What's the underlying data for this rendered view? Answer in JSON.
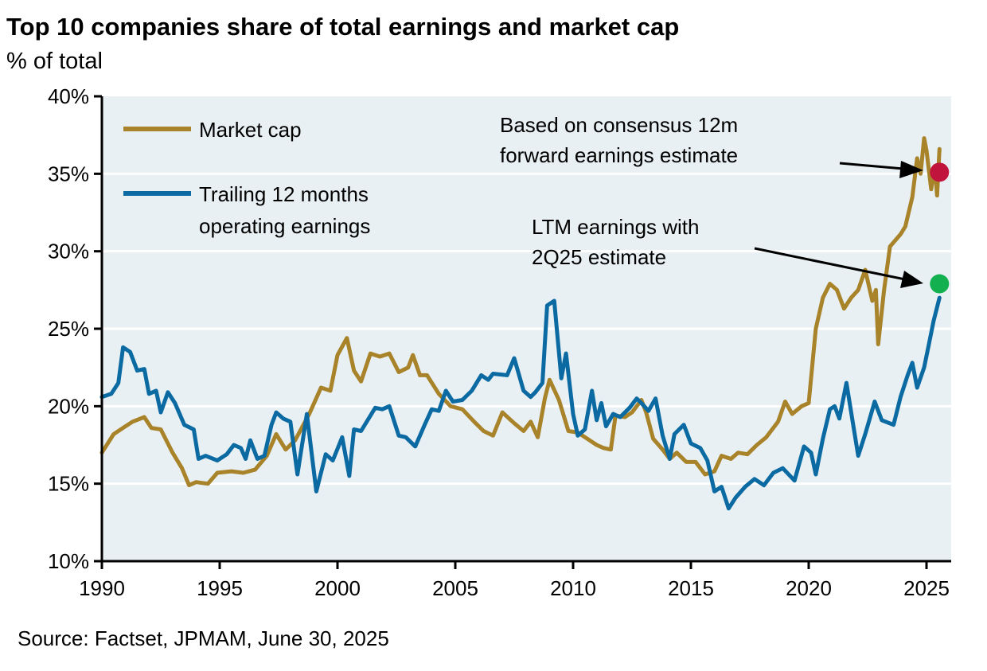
{
  "chart_data": {
    "type": "line",
    "title": "Top 10 companies share of total earnings and market cap",
    "subtitle": "% of total",
    "source": "Source: Factset, JPMAM, June 30, 2025",
    "xlim": [
      1990,
      2026
    ],
    "ylim": [
      10,
      40
    ],
    "grid": true,
    "legend_placement": "top-left",
    "x_ticks": [
      1990,
      1995,
      2000,
      2005,
      2010,
      2015,
      2020,
      2025
    ],
    "x_tick_labels": [
      "1990",
      "1995",
      "2000",
      "2005",
      "2010",
      "2015",
      "2020",
      "2025"
    ],
    "y_ticks": [
      10,
      15,
      20,
      25,
      30,
      35,
      40
    ],
    "y_tick_labels": [
      "10%",
      "15%",
      "20%",
      "25%",
      "30%",
      "35%",
      "40%"
    ],
    "series": [
      {
        "name": "Market cap",
        "legend_lines": [
          "Market cap"
        ],
        "color": "#a8832a",
        "points": [
          [
            1990.0,
            17.0
          ],
          [
            1990.5,
            18.2
          ],
          [
            1990.9,
            18.6
          ],
          [
            1991.3,
            19.0
          ],
          [
            1991.8,
            19.3
          ],
          [
            1992.1,
            18.6
          ],
          [
            1992.5,
            18.5
          ],
          [
            1993.0,
            17.0
          ],
          [
            1993.4,
            16.0
          ],
          [
            1993.7,
            14.9
          ],
          [
            1994.0,
            15.1
          ],
          [
            1994.5,
            15.0
          ],
          [
            1994.9,
            15.7
          ],
          [
            1995.5,
            15.8
          ],
          [
            1996.0,
            15.7
          ],
          [
            1996.5,
            15.9
          ],
          [
            1997.0,
            16.8
          ],
          [
            1997.4,
            18.2
          ],
          [
            1997.8,
            17.2
          ],
          [
            1998.2,
            17.8
          ],
          [
            1998.8,
            19.5
          ],
          [
            1999.3,
            21.2
          ],
          [
            1999.7,
            21.0
          ],
          [
            2000.0,
            23.3
          ],
          [
            2000.4,
            24.4
          ],
          [
            2000.7,
            22.3
          ],
          [
            2001.0,
            21.6
          ],
          [
            2001.4,
            23.4
          ],
          [
            2001.8,
            23.2
          ],
          [
            2002.2,
            23.4
          ],
          [
            2002.6,
            22.2
          ],
          [
            2003.0,
            22.5
          ],
          [
            2003.2,
            23.3
          ],
          [
            2003.5,
            22.0
          ],
          [
            2003.8,
            22.0
          ],
          [
            2004.3,
            20.8
          ],
          [
            2004.8,
            20.0
          ],
          [
            2005.3,
            19.8
          ],
          [
            2005.8,
            19.0
          ],
          [
            2006.2,
            18.4
          ],
          [
            2006.6,
            18.1
          ],
          [
            2007.0,
            19.6
          ],
          [
            2007.5,
            18.9
          ],
          [
            2007.9,
            18.4
          ],
          [
            2008.2,
            19.0
          ],
          [
            2008.5,
            18.0
          ],
          [
            2008.8,
            20.5
          ],
          [
            2009.0,
            21.7
          ],
          [
            2009.4,
            20.4
          ],
          [
            2009.8,
            18.4
          ],
          [
            2010.2,
            18.3
          ],
          [
            2010.6,
            17.9
          ],
          [
            2011.0,
            17.5
          ],
          [
            2011.3,
            17.3
          ],
          [
            2011.6,
            17.2
          ],
          [
            2011.8,
            19.4
          ],
          [
            2012.2,
            19.3
          ],
          [
            2012.5,
            19.6
          ],
          [
            2012.9,
            20.4
          ],
          [
            2013.1,
            19.6
          ],
          [
            2013.4,
            17.9
          ],
          [
            2013.8,
            17.2
          ],
          [
            2014.1,
            16.6
          ],
          [
            2014.4,
            17.0
          ],
          [
            2014.8,
            16.4
          ],
          [
            2015.2,
            16.4
          ],
          [
            2015.6,
            15.6
          ],
          [
            2016.0,
            15.8
          ],
          [
            2016.3,
            16.8
          ],
          [
            2016.7,
            16.6
          ],
          [
            2017.0,
            17.0
          ],
          [
            2017.4,
            16.9
          ],
          [
            2017.8,
            17.5
          ],
          [
            2018.2,
            18.0
          ],
          [
            2018.7,
            19.0
          ],
          [
            2019.0,
            20.3
          ],
          [
            2019.3,
            19.5
          ],
          [
            2019.7,
            20.0
          ],
          [
            2020.0,
            20.2
          ],
          [
            2020.3,
            25.0
          ],
          [
            2020.6,
            27.0
          ],
          [
            2020.9,
            27.9
          ],
          [
            2021.2,
            27.5
          ],
          [
            2021.5,
            26.3
          ],
          [
            2021.8,
            27.0
          ],
          [
            2022.1,
            27.5
          ],
          [
            2022.4,
            28.8
          ],
          [
            2022.7,
            26.8
          ],
          [
            2022.85,
            27.5
          ],
          [
            2022.95,
            24.0
          ],
          [
            2023.2,
            27.5
          ],
          [
            2023.45,
            30.3
          ],
          [
            2023.9,
            31.1
          ],
          [
            2024.1,
            31.6
          ],
          [
            2024.4,
            33.5
          ],
          [
            2024.6,
            36.0
          ],
          [
            2024.75,
            35.0
          ],
          [
            2024.9,
            37.3
          ],
          [
            2025.0,
            36.5
          ],
          [
            2025.2,
            34.0
          ],
          [
            2025.35,
            35.5
          ],
          [
            2025.45,
            33.6
          ],
          [
            2025.55,
            36.6
          ]
        ]
      },
      {
        "name": "Trailing 12 months operating earnings",
        "legend_lines": [
          "Trailing 12 months",
          "operating earnings"
        ],
        "color": "#0b6aa2",
        "points": [
          [
            1990.0,
            20.6
          ],
          [
            1990.4,
            20.8
          ],
          [
            1990.7,
            21.5
          ],
          [
            1990.9,
            23.8
          ],
          [
            1991.2,
            23.5
          ],
          [
            1991.5,
            22.3
          ],
          [
            1991.8,
            22.4
          ],
          [
            1992.0,
            20.8
          ],
          [
            1992.3,
            21.0
          ],
          [
            1992.5,
            19.6
          ],
          [
            1992.8,
            20.9
          ],
          [
            1993.1,
            20.2
          ],
          [
            1993.5,
            18.8
          ],
          [
            1993.9,
            18.5
          ],
          [
            1994.1,
            16.6
          ],
          [
            1994.4,
            16.8
          ],
          [
            1994.9,
            16.5
          ],
          [
            1995.3,
            16.9
          ],
          [
            1995.6,
            17.5
          ],
          [
            1995.9,
            17.3
          ],
          [
            1996.1,
            16.6
          ],
          [
            1996.3,
            17.8
          ],
          [
            1996.6,
            16.6
          ],
          [
            1996.9,
            16.8
          ],
          [
            1997.2,
            18.8
          ],
          [
            1997.4,
            19.6
          ],
          [
            1997.7,
            19.2
          ],
          [
            1998.0,
            19.0
          ],
          [
            1998.3,
            15.6
          ],
          [
            1998.7,
            19.5
          ],
          [
            1999.1,
            14.5
          ],
          [
            1999.5,
            16.9
          ],
          [
            1999.8,
            16.5
          ],
          [
            2000.2,
            18.0
          ],
          [
            2000.5,
            15.5
          ],
          [
            2000.7,
            18.5
          ],
          [
            2001.0,
            18.4
          ],
          [
            2001.6,
            19.9
          ],
          [
            2001.9,
            19.8
          ],
          [
            2002.2,
            20.0
          ],
          [
            2002.6,
            18.1
          ],
          [
            2002.9,
            18.0
          ],
          [
            2003.3,
            17.4
          ],
          [
            2003.7,
            18.8
          ],
          [
            2004.0,
            19.8
          ],
          [
            2004.3,
            19.7
          ],
          [
            2004.6,
            21.0
          ],
          [
            2004.9,
            20.3
          ],
          [
            2005.3,
            20.4
          ],
          [
            2005.7,
            21.0
          ],
          [
            2006.1,
            22.0
          ],
          [
            2006.4,
            21.7
          ],
          [
            2006.6,
            22.1
          ],
          [
            2007.2,
            22.0
          ],
          [
            2007.5,
            23.1
          ],
          [
            2007.9,
            21.0
          ],
          [
            2008.2,
            20.6
          ],
          [
            2008.4,
            20.9
          ],
          [
            2008.7,
            21.5
          ],
          [
            2008.9,
            26.5
          ],
          [
            2009.2,
            26.8
          ],
          [
            2009.5,
            21.8
          ],
          [
            2009.7,
            23.4
          ],
          [
            2010.0,
            19.5
          ],
          [
            2010.2,
            18.1
          ],
          [
            2010.5,
            18.5
          ],
          [
            2010.8,
            21.0
          ],
          [
            2011.0,
            19.1
          ],
          [
            2011.2,
            20.2
          ],
          [
            2011.4,
            18.7
          ],
          [
            2011.7,
            19.5
          ],
          [
            2012.0,
            19.3
          ],
          [
            2012.4,
            19.9
          ],
          [
            2012.7,
            20.5
          ],
          [
            2012.9,
            20.2
          ],
          [
            2013.2,
            19.7
          ],
          [
            2013.5,
            20.5
          ],
          [
            2013.8,
            18.1
          ],
          [
            2014.1,
            16.6
          ],
          [
            2014.3,
            18.2
          ],
          [
            2014.7,
            18.8
          ],
          [
            2015.0,
            17.6
          ],
          [
            2015.4,
            17.3
          ],
          [
            2015.7,
            16.5
          ],
          [
            2016.0,
            14.5
          ],
          [
            2016.3,
            14.8
          ],
          [
            2016.6,
            13.4
          ],
          [
            2016.9,
            14.1
          ],
          [
            2017.3,
            14.8
          ],
          [
            2017.7,
            15.3
          ],
          [
            2018.1,
            14.9
          ],
          [
            2018.5,
            15.7
          ],
          [
            2018.9,
            16.0
          ],
          [
            2019.4,
            15.2
          ],
          [
            2019.8,
            17.4
          ],
          [
            2020.1,
            17.0
          ],
          [
            2020.3,
            15.6
          ],
          [
            2020.6,
            17.9
          ],
          [
            2020.9,
            19.8
          ],
          [
            2021.1,
            20.0
          ],
          [
            2021.3,
            19.2
          ],
          [
            2021.6,
            21.5
          ],
          [
            2021.9,
            18.7
          ],
          [
            2022.1,
            16.8
          ],
          [
            2022.4,
            18.2
          ],
          [
            2022.8,
            20.3
          ],
          [
            2023.1,
            19.1
          ],
          [
            2023.6,
            18.8
          ],
          [
            2023.9,
            20.6
          ],
          [
            2024.2,
            22.0
          ],
          [
            2024.4,
            22.8
          ],
          [
            2024.6,
            21.2
          ],
          [
            2024.9,
            22.5
          ],
          [
            2025.1,
            24.0
          ],
          [
            2025.3,
            25.5
          ],
          [
            2025.55,
            27.0
          ]
        ]
      }
    ],
    "markers": [
      {
        "name": "forward-earnings-estimate",
        "x": 2025.55,
        "y": 35.1,
        "color": "#c0143c"
      },
      {
        "name": "ltm-earnings-estimate",
        "x": 2025.55,
        "y": 27.9,
        "color": "#12b04e"
      }
    ],
    "annotations": [
      {
        "lines": [
          "Based on consensus 12m",
          "forward earnings estimate"
        ]
      },
      {
        "lines": [
          "LTM earnings with",
          "2Q25 estimate"
        ]
      }
    ]
  }
}
